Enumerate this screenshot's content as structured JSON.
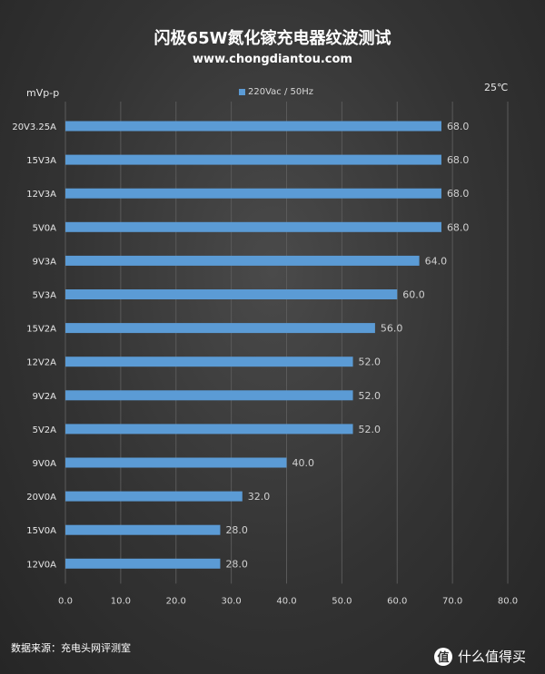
{
  "chart_data": {
    "type": "bar",
    "orientation": "horizontal",
    "title": "闪极65W氮化镓充电器纹波测试",
    "subtitle": "www.chongdiantou.com",
    "ylabel": "mVp-p",
    "xlabel": "",
    "annotation": "25℃",
    "categories": [
      "20V3.25A",
      "15V3A",
      "12V3A",
      "5V0A",
      "9V3A",
      "5V3A",
      "15V2A",
      "12V2A",
      "9V2A",
      "5V2A",
      "9V0A",
      "20V0A",
      "15V0A",
      "12V0A"
    ],
    "series": [
      {
        "name": "220Vac / 50Hz",
        "values": [
          68.0,
          68.0,
          68.0,
          68.0,
          64.0,
          60.0,
          56.0,
          52.0,
          52.0,
          52.0,
          40.0,
          32.0,
          28.0,
          28.0
        ],
        "color": "#5b9bd5"
      }
    ],
    "xlim": [
      0,
      80
    ],
    "xticks": [
      "0.0",
      "10.0",
      "20.0",
      "30.0",
      "40.0",
      "50.0",
      "60.0",
      "70.0",
      "80.0"
    ],
    "grid": true,
    "legend": "top-center"
  },
  "footer": {
    "source": "数据来源：充电头网评测室",
    "watermark_icon": "值",
    "watermark_text": "什么值得买"
  }
}
